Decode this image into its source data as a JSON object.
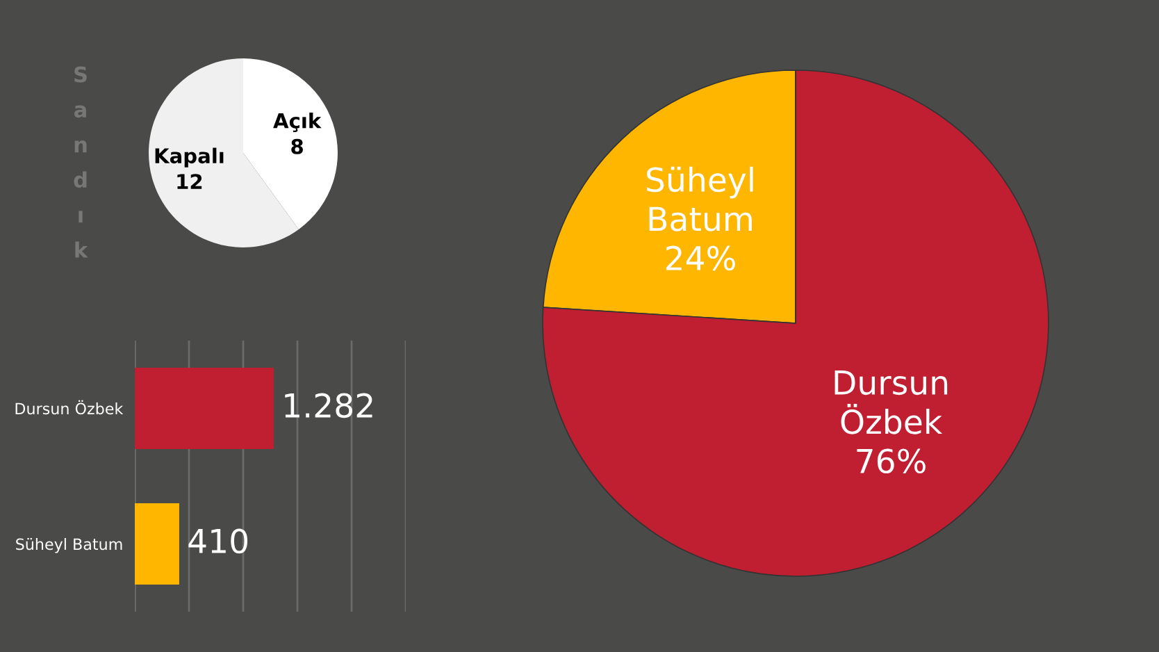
{
  "chart_data": [
    {
      "type": "pie",
      "title": "Sandık",
      "categories": [
        "Açık",
        "Kapalı"
      ],
      "values": [
        8,
        12
      ],
      "colors": [
        "#ffffff",
        "#f0f0f0"
      ],
      "data_labels": true
    },
    {
      "type": "bar",
      "orientation": "horizontal",
      "categories": [
        "Dursun Özbek",
        "Süheyl Batum"
      ],
      "values": [
        1282,
        410
      ],
      "colors": [
        "#c01f31",
        "#ffb600"
      ],
      "value_labels": [
        "1.282",
        "410"
      ],
      "xlim": [
        0,
        2500
      ],
      "xticks": [
        {
          "value": 0,
          "label": null
        },
        {
          "value": 500,
          "label": null
        },
        {
          "value": 1000,
          "label": null
        },
        {
          "value": 1500,
          "label": null
        },
        {
          "value": 2000,
          "label": null
        },
        {
          "value": 2500,
          "label": null
        }
      ],
      "grid": "x",
      "tick_labels": "y"
    },
    {
      "type": "pie",
      "categories": [
        "Süheyl Batum",
        "Dursun Özbek"
      ],
      "values": [
        24,
        76
      ],
      "colors": [
        "#ffb600",
        "#c01f31"
      ],
      "value_labels": [
        "24%",
        "76%"
      ]
    }
  ]
}
